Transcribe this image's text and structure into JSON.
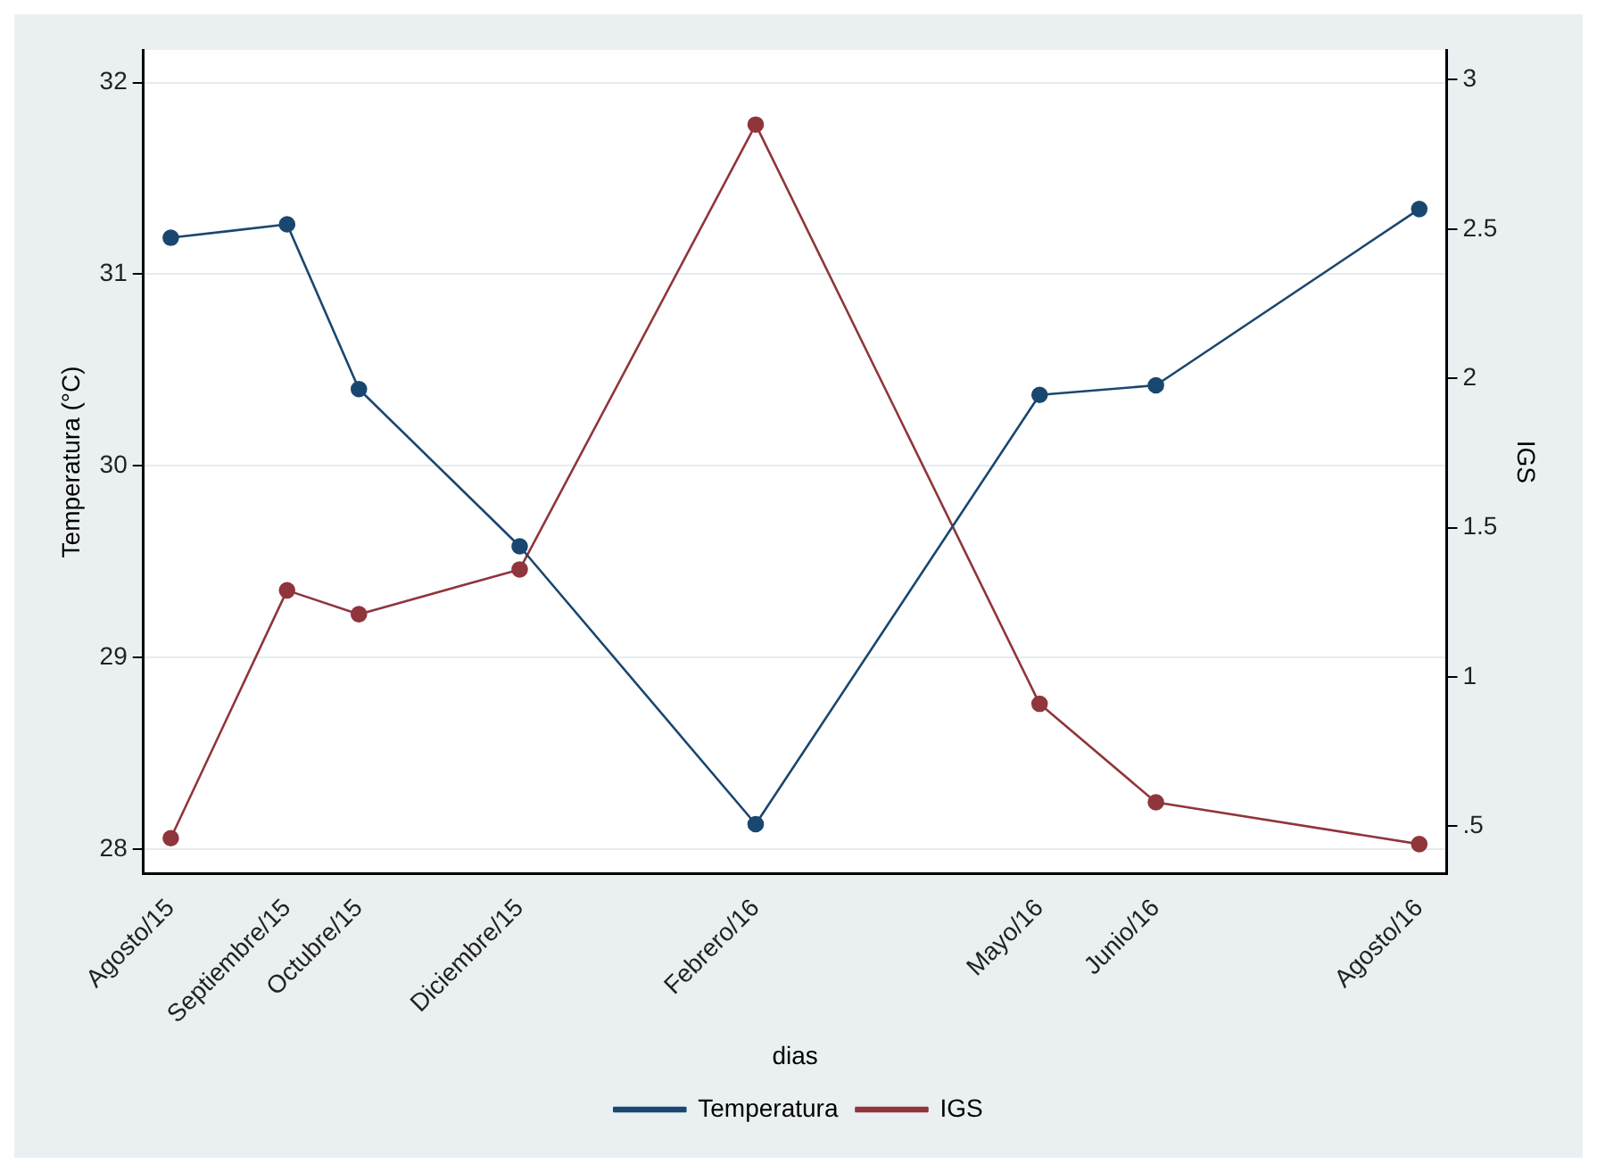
{
  "chart_data": {
    "type": "line",
    "xlabel": "dias",
    "ylabel": "Temperatura (°C)",
    "y2label": "IGS",
    "x": [
      "2015-08-25",
      "2015-09-28",
      "2015-10-19",
      "2015-12-05",
      "2016-02-12",
      "2016-05-05",
      "2016-06-08",
      "2016-08-24"
    ],
    "series": [
      {
        "name": "Temperatura",
        "color": "#1a476f",
        "values": [
          31.19,
          31.26,
          30.4,
          29.58,
          28.13,
          30.37,
          30.42,
          31.34
        ]
      },
      {
        "name": "IGS",
        "color": "#90353b",
        "axis": "y2",
        "values": [
          0.46,
          1.29,
          1.21,
          1.36,
          2.85,
          0.91,
          0.58,
          0.44
        ]
      }
    ],
    "xlim": [
      "2015-08-17",
      "2016-09-01"
    ],
    "xticks": [
      {
        "value": "2015-08-25",
        "label": "Agosto/15"
      },
      {
        "value": "2015-09-28",
        "label": "Septiembre/15"
      },
      {
        "value": "2015-10-19",
        "label": "Octubre/15"
      },
      {
        "value": "2015-12-05",
        "label": "Diciembre/15"
      },
      {
        "value": "2016-02-12",
        "label": "Febrero/16"
      },
      {
        "value": "2016-05-05",
        "label": "Mayo/16"
      },
      {
        "value": "2016-06-08",
        "label": "Junio/16"
      },
      {
        "value": "2016-08-24",
        "label": "Agosto/16"
      }
    ],
    "ylim": [
      27.87,
      32.17
    ],
    "yticks": [
      28,
      29,
      30,
      31,
      32
    ],
    "y2lim": [
      0.34,
      3.1
    ],
    "y2ticks": [
      {
        "value": 0.5,
        "label": ".5"
      },
      1,
      1.5,
      2,
      2.5,
      3
    ],
    "grid": "y",
    "legend": "bottom",
    "marker": "circle",
    "line_style": "solid"
  }
}
